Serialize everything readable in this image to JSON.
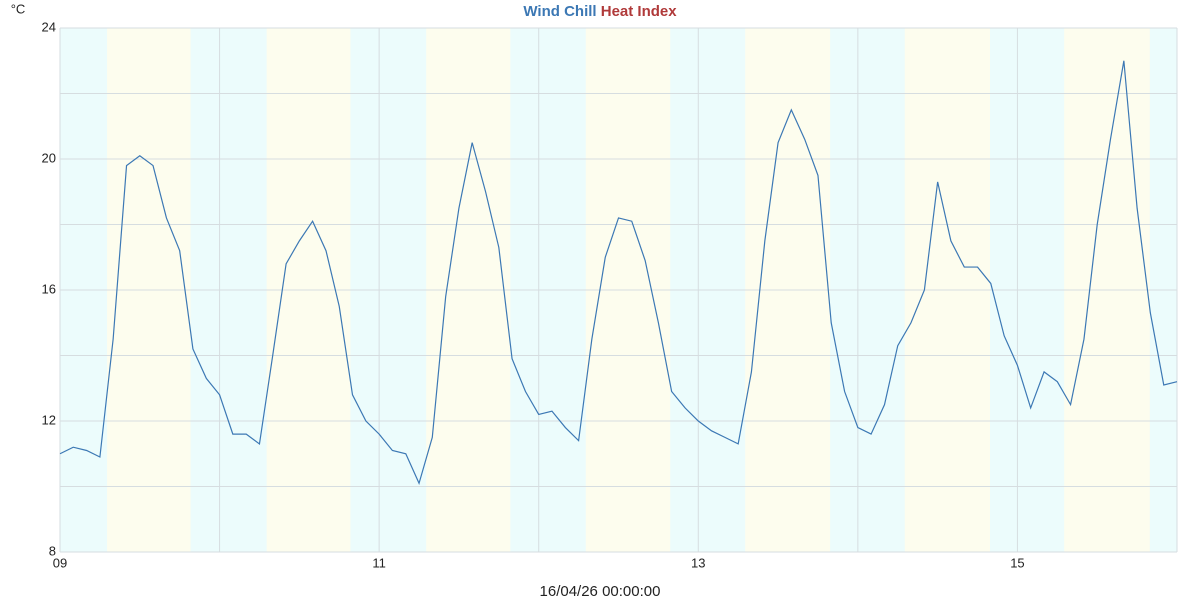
{
  "chart_data": {
    "type": "line",
    "y_label": "°C",
    "x_label": "16/04/26 00:00:00",
    "series": [
      {
        "name": "Wind Chill",
        "color": "#3c78b4",
        "values": [
          11.0,
          11.2,
          11.1,
          10.9,
          14.5,
          19.8,
          20.1,
          19.8,
          18.2,
          17.2,
          14.2,
          13.3,
          12.8,
          11.6,
          11.6,
          11.3,
          14.0,
          16.8,
          17.5,
          18.1,
          17.2,
          15.5,
          12.8,
          12.0,
          11.6,
          11.1,
          11.0,
          10.1,
          11.5,
          15.8,
          18.5,
          20.5,
          19.0,
          17.3,
          13.9,
          12.9,
          12.2,
          12.3,
          11.8,
          11.4,
          14.5,
          17.0,
          18.2,
          18.1,
          16.9,
          15.0,
          12.9,
          12.4,
          12.0,
          11.7,
          11.5,
          11.3,
          13.5,
          17.5,
          20.5,
          21.5,
          20.6,
          19.5,
          15.0,
          12.9,
          11.8,
          11.6,
          12.5,
          14.3,
          15.0,
          16.0,
          19.3,
          17.5,
          16.7,
          16.7,
          16.2,
          14.6,
          13.7,
          12.4,
          13.5,
          13.2,
          12.5,
          14.5,
          18.0,
          20.6,
          23.0,
          18.5,
          15.3,
          13.1,
          13.2
        ]
      },
      {
        "name": "Heat Index",
        "color": "#b03a3a"
      }
    ],
    "x": [
      9,
      9.083,
      9.167,
      9.25,
      9.333,
      9.417,
      9.5,
      9.583,
      9.667,
      9.75,
      9.833,
      9.917,
      10,
      10.083,
      10.167,
      10.25,
      10.333,
      10.417,
      10.5,
      10.583,
      10.667,
      10.75,
      10.833,
      10.917,
      11,
      11.083,
      11.167,
      11.25,
      11.333,
      11.417,
      11.5,
      11.583,
      11.667,
      11.75,
      11.833,
      11.917,
      12,
      12.083,
      12.167,
      12.25,
      12.333,
      12.417,
      12.5,
      12.583,
      12.667,
      12.75,
      12.833,
      12.917,
      13,
      13.083,
      13.167,
      13.25,
      13.333,
      13.417,
      13.5,
      13.583,
      13.667,
      13.75,
      13.833,
      13.917,
      14,
      14.083,
      14.167,
      14.25,
      14.333,
      14.417,
      14.5,
      14.583,
      14.667,
      14.75,
      14.833,
      14.917,
      15,
      15.083,
      15.167,
      15.25,
      15.333,
      15.417,
      15.5,
      15.583,
      15.667,
      15.75,
      15.833,
      15.917,
      16
    ],
    "daylight": [
      [
        9.295,
        9.818
      ],
      [
        10.295,
        10.82
      ],
      [
        11.295,
        11.822
      ],
      [
        12.295,
        12.824
      ],
      [
        13.294,
        13.826
      ],
      [
        14.294,
        14.828
      ],
      [
        15.293,
        15.83
      ]
    ],
    "night_color": "#ecfcfc",
    "day_color": "#fdfdee",
    "xlim": [
      9,
      16
    ],
    "ylim": [
      8,
      24
    ],
    "xticks": [
      {
        "value": 9,
        "label": "09"
      },
      11,
      13,
      15
    ],
    "x_minor_ticks": [
      10,
      12,
      14,
      16
    ],
    "yticks": [
      8,
      12,
      16,
      20,
      24
    ],
    "y_minor_ticks": [
      10,
      14,
      18,
      22
    ],
    "grid": true
  }
}
